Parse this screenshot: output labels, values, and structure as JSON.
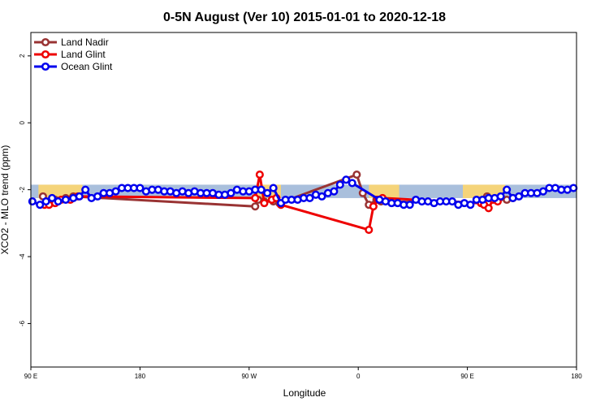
{
  "chart_data": {
    "type": "line",
    "title": "0-5N August (Ver 10)   2015-01-01 to 2020-12-18",
    "xlabel": "Longitude",
    "ylabel": "XCO2 - MLO trend (ppm)",
    "xlim": [
      90,
      450
    ],
    "ylim": [
      -7.3,
      2.7
    ],
    "x_ticks": [
      {
        "value": 90,
        "label": "90 E"
      },
      {
        "value": 162,
        "label": "180"
      },
      {
        "value": 234,
        "label": "90 W"
      },
      {
        "value": 306,
        "label": "0"
      },
      {
        "value": 378,
        "label": "90 E"
      },
      {
        "value": 450,
        "label": "180"
      }
    ],
    "y_ticks": [
      {
        "value": 2,
        "label": "2"
      },
      {
        "value": 0,
        "label": "0"
      },
      {
        "value": -2,
        "label": "-2"
      },
      {
        "value": -4,
        "label": "-4"
      },
      {
        "value": -6,
        "label": "-6"
      }
    ],
    "band": {
      "low": -2.25,
      "high": -1.85,
      "color": "#a9bfdc"
    },
    "land_regions": {
      "color": "#f5d47a",
      "spans": [
        [
          95,
          124
        ],
        [
          239,
          255
        ],
        [
          313,
          333
        ],
        [
          375,
          403
        ]
      ]
    },
    "legend_position": "top-left",
    "series": [
      {
        "name": "Land Nadir",
        "color": "#993333",
        "points": [
          [
            98,
            -2.2
          ],
          [
            100,
            -2.4
          ],
          [
            106,
            -2.3
          ],
          [
            113,
            -2.25
          ],
          [
            118,
            -2.2
          ],
          [
            238,
            -2.5
          ],
          [
            240,
            -2.3
          ],
          [
            244,
            -2.35
          ],
          [
            250,
            -2.35
          ],
          [
            254,
            -2.4
          ],
          [
            305,
            -1.55
          ],
          [
            309,
            -2.1
          ],
          [
            313,
            -2.45
          ],
          [
            318,
            -2.3
          ],
          [
            321,
            -2.35
          ],
          [
            387,
            -2.4
          ],
          [
            391,
            -2.2
          ],
          [
            397,
            -2.3
          ],
          [
            404,
            -2.3
          ],
          [
            408,
            -2.25
          ]
        ]
      },
      {
        "name": "Land Glint",
        "color": "#ee0000",
        "points": [
          [
            99,
            -2.45
          ],
          [
            102,
            -2.45
          ],
          [
            106,
            -2.4
          ],
          [
            110,
            -2.3
          ],
          [
            116,
            -2.3
          ],
          [
            121,
            -2.2
          ],
          [
            238,
            -2.25
          ],
          [
            241,
            -1.55
          ],
          [
            244,
            -2.4
          ],
          [
            249,
            -2.3
          ],
          [
            252,
            -2.25
          ],
          [
            255,
            -2.45
          ],
          [
            313,
            -3.2
          ],
          [
            316,
            -2.5
          ],
          [
            319,
            -2.3
          ],
          [
            322,
            -2.25
          ],
          [
            387,
            -2.4
          ],
          [
            389,
            -2.45
          ],
          [
            392,
            -2.55
          ],
          [
            395,
            -2.3
          ],
          [
            398,
            -2.35
          ]
        ]
      },
      {
        "name": "Ocean Glint",
        "color": "#0000ee",
        "points": [
          [
            91,
            -2.35
          ],
          [
            96,
            -2.45
          ],
          [
            100,
            -2.35
          ],
          [
            104,
            -2.25
          ],
          [
            108,
            -2.35
          ],
          [
            113,
            -2.3
          ],
          [
            118,
            -2.25
          ],
          [
            122,
            -2.2
          ],
          [
            126,
            -2.0
          ],
          [
            130,
            -2.25
          ],
          [
            134,
            -2.2
          ],
          [
            138,
            -2.1
          ],
          [
            142,
            -2.1
          ],
          [
            146,
            -2.05
          ],
          [
            150,
            -1.95
          ],
          [
            154,
            -1.95
          ],
          [
            158,
            -1.95
          ],
          [
            162,
            -1.95
          ],
          [
            166,
            -2.05
          ],
          [
            170,
            -2.0
          ],
          [
            174,
            -2.0
          ],
          [
            178,
            -2.05
          ],
          [
            182,
            -2.05
          ],
          [
            186,
            -2.1
          ],
          [
            190,
            -2.05
          ],
          [
            194,
            -2.1
          ],
          [
            198,
            -2.05
          ],
          [
            202,
            -2.1
          ],
          [
            206,
            -2.1
          ],
          [
            210,
            -2.1
          ],
          [
            214,
            -2.15
          ],
          [
            218,
            -2.15
          ],
          [
            222,
            -2.1
          ],
          [
            226,
            -2.0
          ],
          [
            230,
            -2.05
          ],
          [
            234,
            -2.05
          ],
          [
            238,
            -2.0
          ],
          [
            242,
            -2.0
          ],
          [
            246,
            -2.1
          ],
          [
            250,
            -1.95
          ],
          [
            255,
            -2.4
          ],
          [
            258,
            -2.3
          ],
          [
            262,
            -2.3
          ],
          [
            266,
            -2.3
          ],
          [
            270,
            -2.25
          ],
          [
            274,
            -2.25
          ],
          [
            278,
            -2.15
          ],
          [
            282,
            -2.2
          ],
          [
            286,
            -2.1
          ],
          [
            290,
            -2.05
          ],
          [
            294,
            -1.85
          ],
          [
            298,
            -1.7
          ],
          [
            302,
            -1.8
          ],
          [
            320,
            -2.3
          ],
          [
            324,
            -2.35
          ],
          [
            328,
            -2.4
          ],
          [
            332,
            -2.4
          ],
          [
            336,
            -2.45
          ],
          [
            340,
            -2.45
          ],
          [
            344,
            -2.3
          ],
          [
            348,
            -2.35
          ],
          [
            352,
            -2.35
          ],
          [
            356,
            -2.4
          ],
          [
            360,
            -2.35
          ],
          [
            364,
            -2.35
          ],
          [
            368,
            -2.35
          ],
          [
            372,
            -2.45
          ],
          [
            376,
            -2.4
          ],
          [
            380,
            -2.45
          ],
          [
            384,
            -2.3
          ],
          [
            388,
            -2.3
          ],
          [
            392,
            -2.25
          ],
          [
            396,
            -2.25
          ],
          [
            400,
            -2.2
          ],
          [
            404,
            -2.0
          ],
          [
            408,
            -2.25
          ],
          [
            412,
            -2.2
          ],
          [
            416,
            -2.1
          ],
          [
            420,
            -2.1
          ],
          [
            424,
            -2.1
          ],
          [
            428,
            -2.05
          ],
          [
            432,
            -1.95
          ],
          [
            436,
            -1.95
          ],
          [
            440,
            -2.0
          ],
          [
            444,
            -2.0
          ],
          [
            448,
            -1.95
          ]
        ]
      }
    ]
  }
}
